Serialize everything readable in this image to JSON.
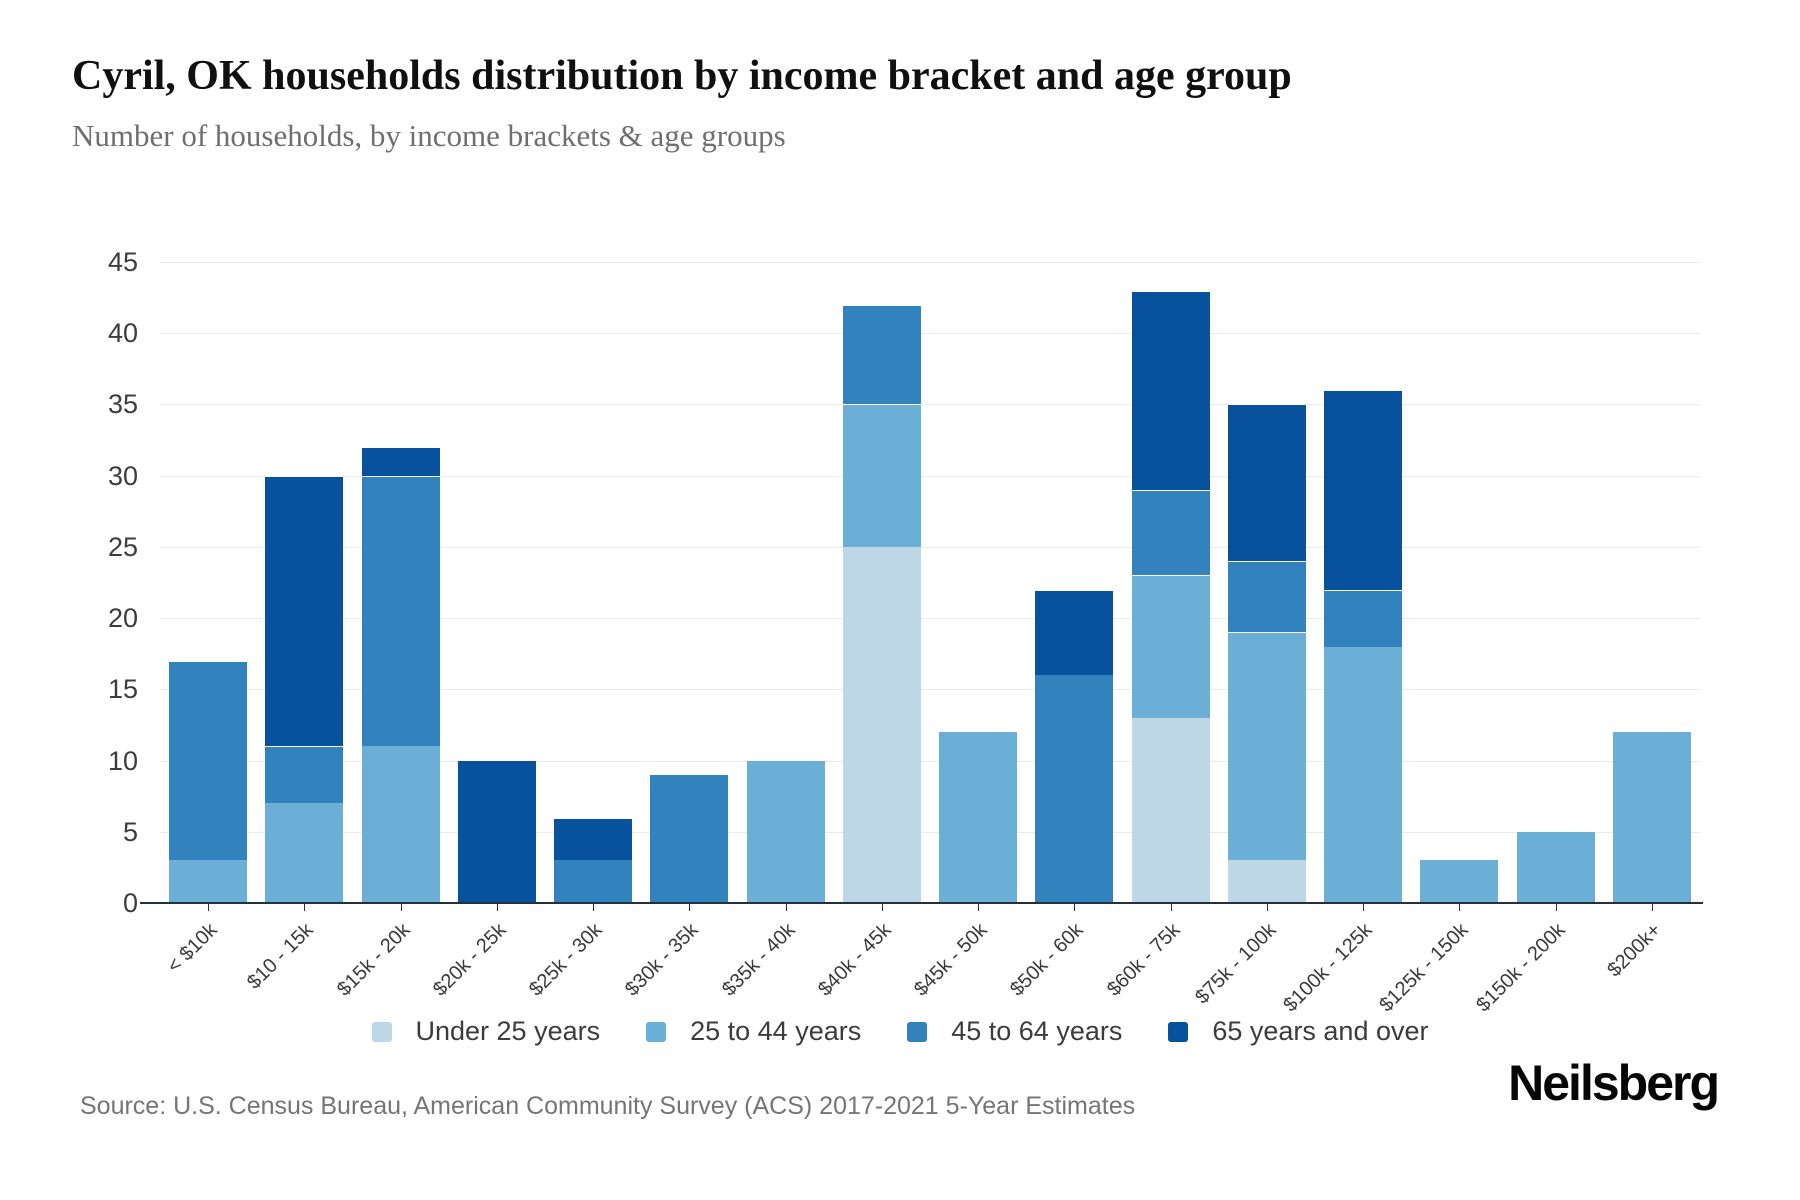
{
  "header": {
    "title": "Cyril, OK households distribution by income bracket and age group",
    "subtitle": "Number of households, by income brackets & age groups"
  },
  "footer": {
    "source": "Source: U.S. Census Bureau, American Community Survey (ACS) 2017-2021 5-Year Estimates",
    "brand": "Neilsberg"
  },
  "colors": {
    "axis_line": "#22313f",
    "gridline": "#ebebeb",
    "y_label": "#3d3d3d",
    "x_label": "#3a3a3a",
    "legend_label": "#3c3c3c",
    "source_text": "#757575"
  },
  "chart_data": {
    "type": "bar",
    "stacked": true,
    "title": "Cyril, OK households distribution by income bracket and age group",
    "subtitle": "Number of households, by income brackets & age groups",
    "xlabel": "",
    "ylabel": "",
    "ylim": [
      0,
      45
    ],
    "yticks": [
      0,
      5,
      10,
      15,
      20,
      25,
      30,
      35,
      40,
      45
    ],
    "grid": true,
    "legend_position": "bottom",
    "categories": [
      "< $10k",
      "$10 - 15k",
      "$15k - 20k",
      "$20k - 25k",
      "$25k - 30k",
      "$30k - 35k",
      "$35k - 40k",
      "$40k - 45k",
      "$45k - 50k",
      "$50k - 60k",
      "$60k - 75k",
      "$75k - 100k",
      "$100k - 125k",
      "$125k - 150k",
      "$150k - 200k",
      "$200k+"
    ],
    "series": [
      {
        "name": "Under 25 years",
        "color": "#bdd7e7",
        "values": [
          0,
          0,
          0,
          0,
          0,
          0,
          0,
          25,
          0,
          0,
          13,
          3,
          0,
          0,
          0,
          0
        ]
      },
      {
        "name": "25 to 44 years",
        "color": "#6baed6",
        "values": [
          3,
          7,
          11,
          0,
          0,
          0,
          10,
          10,
          12,
          0,
          10,
          16,
          18,
          3,
          5,
          12
        ]
      },
      {
        "name": "45 to 64 years",
        "color": "#3182bd",
        "values": [
          14,
          4,
          19,
          0,
          3,
          9,
          0,
          7,
          0,
          16,
          6,
          5,
          4,
          0,
          0,
          0
        ]
      },
      {
        "name": "65 years and over",
        "color": "#08519c",
        "values": [
          0,
          19,
          2,
          10,
          3,
          0,
          0,
          0,
          0,
          6,
          14,
          11,
          14,
          0,
          0,
          0
        ]
      }
    ],
    "totals": [
      17,
      30,
      32,
      10,
      6,
      9,
      10,
      42,
      12,
      22,
      43,
      35,
      36,
      3,
      5,
      12
    ]
  }
}
